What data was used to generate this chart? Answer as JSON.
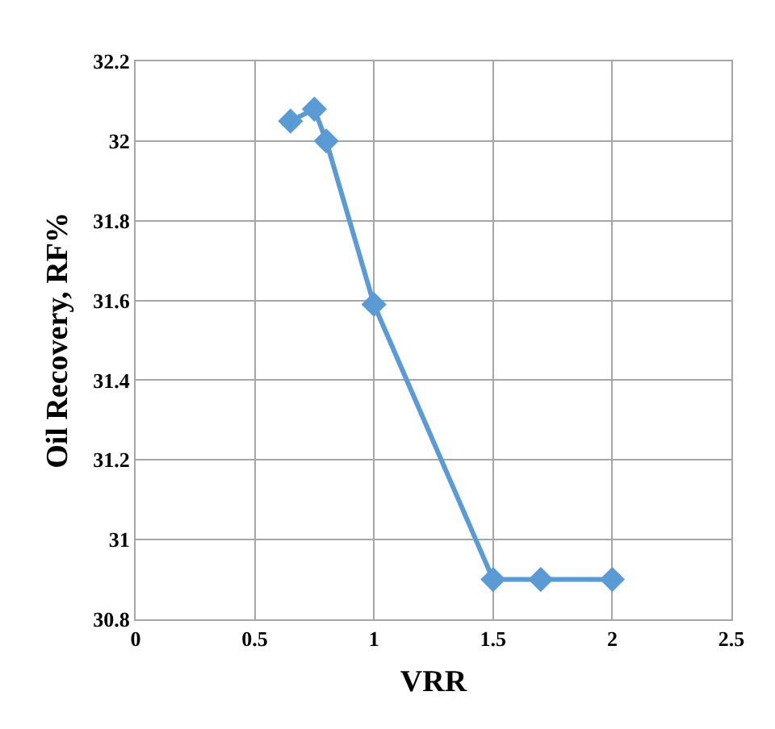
{
  "chart_data": {
    "type": "line",
    "xlabel": "VRR",
    "ylabel": "Oil Recovery, RF%",
    "x": [
      0.65,
      0.75,
      0.8,
      1.0,
      1.5,
      1.7,
      2.0
    ],
    "series": [
      {
        "color": "#5b9bd5",
        "values": [
          32.05,
          32.08,
          32.0,
          31.59,
          30.9,
          30.9,
          30.9
        ]
      }
    ],
    "xlim": [
      0,
      2.5
    ],
    "xticks": [
      0,
      0.5,
      1,
      1.5,
      2,
      2.5
    ],
    "ylim": [
      30.8,
      32.2
    ],
    "yticks": [
      30.8,
      31,
      31.2,
      31.4,
      31.6,
      31.8,
      32,
      32.2
    ],
    "grid": true,
    "marker": "diamond",
    "line_style": "solid"
  }
}
